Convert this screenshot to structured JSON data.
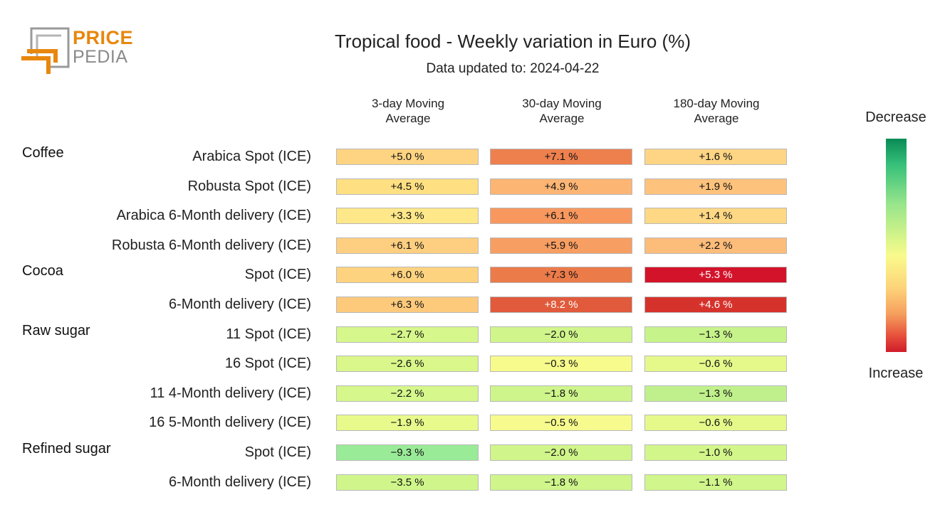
{
  "logo": {
    "line1": "PRICE",
    "line2": "PEDIA"
  },
  "title": "Tropical food - Weekly variation in Euro (%)",
  "subtitle": "Data updated to: 2024-04-22",
  "legend": {
    "top": "Decrease",
    "bottom": "Increase"
  },
  "chart_data": {
    "type": "table",
    "columns": [
      "3-day Moving Average",
      "30-day Moving Average",
      "180-day Moving Average"
    ],
    "groups": [
      {
        "name": "Coffee",
        "rows": [
          {
            "label": "Arabica Spot (ICE)",
            "values": [
              5.0,
              7.1,
              1.6
            ]
          },
          {
            "label": "Robusta Spot (ICE)",
            "values": [
              4.5,
              4.9,
              1.9
            ]
          },
          {
            "label": "Arabica 6-Month delivery (ICE)",
            "values": [
              3.3,
              6.1,
              1.4
            ]
          },
          {
            "label": "Robusta 6-Month delivery (ICE)",
            "values": [
              6.1,
              5.9,
              2.2
            ]
          }
        ]
      },
      {
        "name": "Cocoa",
        "rows": [
          {
            "label": "Spot (ICE)",
            "values": [
              6.0,
              7.3,
              5.3
            ]
          },
          {
            "label": "6-Month delivery (ICE)",
            "values": [
              6.3,
              8.2,
              4.6
            ]
          }
        ]
      },
      {
        "name": "Raw sugar",
        "rows": [
          {
            "label": "11 Spot (ICE)",
            "values": [
              -2.7,
              -2.0,
              -1.3
            ]
          },
          {
            "label": "16 Spot (ICE)",
            "values": [
              -2.6,
              -0.3,
              -0.6
            ]
          },
          {
            "label": "11 4-Month delivery (ICE)",
            "values": [
              -2.2,
              -1.8,
              -1.3
            ]
          },
          {
            "label": "16 5-Month delivery (ICE)",
            "values": [
              -1.9,
              -0.5,
              -0.6
            ]
          }
        ]
      },
      {
        "name": "Refined sugar",
        "rows": [
          {
            "label": "Spot (ICE)",
            "values": [
              -9.3,
              -2.0,
              -1.0
            ]
          },
          {
            "label": "6-Month delivery (ICE)",
            "values": [
              -3.5,
              -1.8,
              -1.1
            ]
          }
        ]
      }
    ],
    "cell_colors": [
      [
        "#fed482",
        "#ee804e",
        "#fdd584"
      ],
      [
        "#fee082",
        "#fdb574",
        "#fdc27c"
      ],
      [
        "#fee889",
        "#f8985f",
        "#fed885"
      ],
      [
        "#fecf80",
        "#f79e62",
        "#fcbc7a"
      ],
      [
        "#fed380",
        "#ec7b4a",
        "#d3132a"
      ],
      [
        "#fdca7c",
        "#e05a3b",
        "#d6322c"
      ],
      [
        "#d6f78b",
        "#d0f58b",
        "#c7f38b"
      ],
      [
        "#d9f78a",
        "#f7fb8c",
        "#e5f98b"
      ],
      [
        "#d5f78b",
        "#cef58b",
        "#c0f08c"
      ],
      [
        "#e7fa8b",
        "#f7fb8d",
        "#e5f98b"
      ],
      [
        "#9aeb98",
        "#d0f58b",
        "#d3f68b"
      ],
      [
        "#d0f68b",
        "#cff58b",
        "#d1f68b"
      ]
    ],
    "light_text_cells": [
      [
        4,
        2
      ],
      [
        5,
        1
      ],
      [
        5,
        2
      ]
    ]
  }
}
